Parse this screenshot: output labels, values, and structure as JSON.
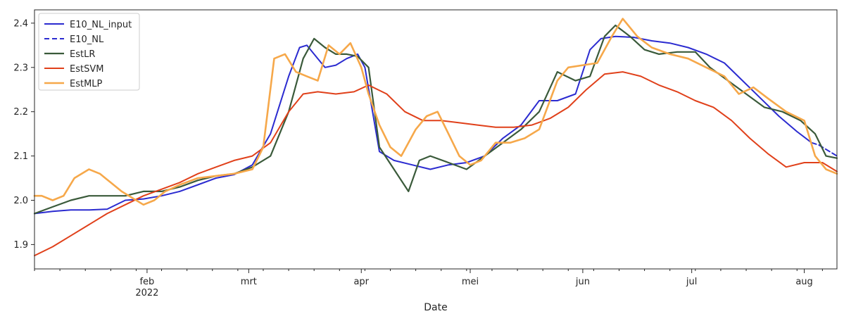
{
  "chart_data": {
    "type": "line",
    "title": "",
    "xlabel": "Date",
    "ylabel": "",
    "xlim": [
      "2022-01-01",
      "2022-08-10"
    ],
    "ylim": [
      1.845,
      2.43
    ],
    "grid": false,
    "legend_placement": "top-left",
    "y_ticks": [
      1.9,
      2.0,
      2.1,
      2.2,
      2.3,
      2.4
    ],
    "y_tick_labels": [
      "1.9",
      "2.0",
      "2.1",
      "2.2",
      "2.3",
      "2.4"
    ],
    "x_ticks": [
      {
        "date": "2022-02-01",
        "label": "feb",
        "sublabel": "2022"
      },
      {
        "date": "2022-03-01",
        "label": "mrt",
        "sublabel": ""
      },
      {
        "date": "2022-04-01",
        "label": "apr",
        "sublabel": ""
      },
      {
        "date": "2022-05-01",
        "label": "mei",
        "sublabel": ""
      },
      {
        "date": "2022-06-01",
        "label": "jun",
        "sublabel": ""
      },
      {
        "date": "2022-07-01",
        "label": "jul",
        "sublabel": ""
      },
      {
        "date": "2022-08-01",
        "label": "aug",
        "sublabel": ""
      }
    ],
    "series": [
      {
        "name": "E10_NL_input",
        "color": "#2b2bd0",
        "dash": "solid",
        "width": 2,
        "x": [
          "2022-01-01",
          "2022-01-06",
          "2022-01-11",
          "2022-01-16",
          "2022-01-21",
          "2022-01-26",
          "2022-01-31",
          "2022-02-05",
          "2022-02-10",
          "2022-02-15",
          "2022-02-20",
          "2022-02-25",
          "2022-03-02",
          "2022-03-07",
          "2022-03-12",
          "2022-03-15",
          "2022-03-17",
          "2022-03-20",
          "2022-03-22",
          "2022-03-25",
          "2022-03-28",
          "2022-03-31",
          "2022-04-02",
          "2022-04-06",
          "2022-04-10",
          "2022-04-15",
          "2022-04-20",
          "2022-04-25",
          "2022-04-30",
          "2022-05-05",
          "2022-05-10",
          "2022-05-15",
          "2022-05-20",
          "2022-05-25",
          "2022-05-30",
          "2022-06-03",
          "2022-06-06",
          "2022-06-10",
          "2022-06-15",
          "2022-06-20",
          "2022-06-25",
          "2022-06-30",
          "2022-07-05",
          "2022-07-10",
          "2022-07-15",
          "2022-07-20",
          "2022-07-25",
          "2022-07-30",
          "2022-08-03"
        ],
        "y": [
          1.97,
          1.975,
          1.978,
          1.978,
          1.98,
          2.0,
          2.003,
          2.01,
          2.02,
          2.035,
          2.05,
          2.058,
          2.08,
          2.15,
          2.28,
          2.345,
          2.35,
          2.32,
          2.3,
          2.305,
          2.32,
          2.33,
          2.3,
          2.11,
          2.09,
          2.08,
          2.07,
          2.08,
          2.085,
          2.1,
          2.14,
          2.17,
          2.225,
          2.225,
          2.24,
          2.34,
          2.365,
          2.37,
          2.368,
          2.36,
          2.355,
          2.345,
          2.33,
          2.31,
          2.27,
          2.23,
          2.19,
          2.155,
          2.13
        ]
      },
      {
        "name": "E10_NL",
        "color": "#2b2bd0",
        "dash": "dashed",
        "width": 2,
        "x": [
          "2022-08-03",
          "2022-08-05",
          "2022-08-07",
          "2022-08-09",
          "2022-08-10"
        ],
        "y": [
          2.13,
          2.125,
          2.115,
          2.105,
          2.1
        ]
      },
      {
        "name": "EstLR",
        "color": "#3a5a3a",
        "dash": "solid",
        "width": 2.2,
        "x": [
          "2022-01-01",
          "2022-01-06",
          "2022-01-11",
          "2022-01-16",
          "2022-01-21",
          "2022-01-26",
          "2022-01-31",
          "2022-02-05",
          "2022-02-10",
          "2022-02-15",
          "2022-02-20",
          "2022-02-25",
          "2022-03-02",
          "2022-03-07",
          "2022-03-12",
          "2022-03-16",
          "2022-03-19",
          "2022-03-22",
          "2022-03-25",
          "2022-03-28",
          "2022-03-31",
          "2022-04-03",
          "2022-04-06",
          "2022-04-10",
          "2022-04-14",
          "2022-04-17",
          "2022-04-20",
          "2022-04-25",
          "2022-04-30",
          "2022-05-05",
          "2022-05-10",
          "2022-05-15",
          "2022-05-20",
          "2022-05-25",
          "2022-05-30",
          "2022-06-03",
          "2022-06-07",
          "2022-06-10",
          "2022-06-14",
          "2022-06-18",
          "2022-06-22",
          "2022-06-27",
          "2022-07-02",
          "2022-07-06",
          "2022-07-11",
          "2022-07-16",
          "2022-07-21",
          "2022-07-26",
          "2022-07-31",
          "2022-08-04",
          "2022-08-07",
          "2022-08-10"
        ],
        "y": [
          1.97,
          1.985,
          2.0,
          2.01,
          2.01,
          2.01,
          2.02,
          2.02,
          2.03,
          2.045,
          2.055,
          2.06,
          2.075,
          2.1,
          2.2,
          2.32,
          2.365,
          2.345,
          2.33,
          2.33,
          2.325,
          2.3,
          2.12,
          2.07,
          2.02,
          2.09,
          2.1,
          2.085,
          2.07,
          2.1,
          2.13,
          2.16,
          2.2,
          2.29,
          2.27,
          2.28,
          2.37,
          2.395,
          2.37,
          2.34,
          2.33,
          2.335,
          2.335,
          2.3,
          2.27,
          2.24,
          2.21,
          2.2,
          2.18,
          2.15,
          2.1,
          2.095
        ]
      },
      {
        "name": "EstSVM",
        "color": "#e0401a",
        "dash": "solid",
        "width": 2,
        "x": [
          "2022-01-01",
          "2022-01-06",
          "2022-01-11",
          "2022-01-16",
          "2022-01-21",
          "2022-01-26",
          "2022-01-31",
          "2022-02-05",
          "2022-02-10",
          "2022-02-15",
          "2022-02-20",
          "2022-02-25",
          "2022-03-02",
          "2022-03-07",
          "2022-03-12",
          "2022-03-16",
          "2022-03-20",
          "2022-03-25",
          "2022-03-30",
          "2022-04-03",
          "2022-04-08",
          "2022-04-13",
          "2022-04-18",
          "2022-04-23",
          "2022-04-28",
          "2022-05-03",
          "2022-05-08",
          "2022-05-13",
          "2022-05-18",
          "2022-05-23",
          "2022-05-28",
          "2022-06-02",
          "2022-06-07",
          "2022-06-12",
          "2022-06-17",
          "2022-06-22",
          "2022-06-27",
          "2022-07-02",
          "2022-07-07",
          "2022-07-12",
          "2022-07-17",
          "2022-07-22",
          "2022-07-27",
          "2022-08-01",
          "2022-08-06",
          "2022-08-10"
        ],
        "y": [
          1.875,
          1.895,
          1.92,
          1.945,
          1.97,
          1.99,
          2.01,
          2.025,
          2.04,
          2.06,
          2.075,
          2.09,
          2.1,
          2.13,
          2.2,
          2.24,
          2.245,
          2.24,
          2.245,
          2.26,
          2.24,
          2.2,
          2.18,
          2.18,
          2.175,
          2.17,
          2.165,
          2.165,
          2.17,
          2.185,
          2.21,
          2.25,
          2.285,
          2.29,
          2.28,
          2.26,
          2.245,
          2.225,
          2.21,
          2.18,
          2.14,
          2.105,
          2.075,
          2.085,
          2.085,
          2.065
        ]
      },
      {
        "name": "EstMLP",
        "color": "#f6a84a",
        "dash": "solid",
        "width": 2.6,
        "x": [
          "2022-01-01",
          "2022-01-03",
          "2022-01-06",
          "2022-01-09",
          "2022-01-12",
          "2022-01-16",
          "2022-01-19",
          "2022-01-22",
          "2022-01-25",
          "2022-01-28",
          "2022-01-31",
          "2022-02-03",
          "2022-02-06",
          "2022-02-10",
          "2022-02-15",
          "2022-02-20",
          "2022-02-25",
          "2022-03-02",
          "2022-03-05",
          "2022-03-08",
          "2022-03-11",
          "2022-03-14",
          "2022-03-17",
          "2022-03-20",
          "2022-03-23",
          "2022-03-26",
          "2022-03-29",
          "2022-04-01",
          "2022-04-03",
          "2022-04-06",
          "2022-04-09",
          "2022-04-12",
          "2022-04-14",
          "2022-04-16",
          "2022-04-19",
          "2022-04-22",
          "2022-04-25",
          "2022-04-28",
          "2022-05-01",
          "2022-05-04",
          "2022-05-08",
          "2022-05-12",
          "2022-05-16",
          "2022-05-20",
          "2022-05-25",
          "2022-05-28",
          "2022-06-01",
          "2022-06-05",
          "2022-06-09",
          "2022-06-12",
          "2022-06-16",
          "2022-06-20",
          "2022-06-25",
          "2022-06-30",
          "2022-07-05",
          "2022-07-10",
          "2022-07-14",
          "2022-07-18",
          "2022-07-22",
          "2022-07-27",
          "2022-08-01",
          "2022-08-04",
          "2022-08-07",
          "2022-08-10"
        ],
        "y": [
          2.01,
          2.01,
          2.0,
          2.01,
          2.05,
          2.07,
          2.06,
          2.04,
          2.02,
          2.005,
          1.99,
          2.0,
          2.02,
          2.035,
          2.05,
          2.055,
          2.06,
          2.07,
          2.12,
          2.32,
          2.33,
          2.29,
          2.28,
          2.27,
          2.35,
          2.33,
          2.355,
          2.3,
          2.24,
          2.17,
          2.12,
          2.1,
          2.13,
          2.16,
          2.19,
          2.2,
          2.15,
          2.1,
          2.08,
          2.09,
          2.13,
          2.13,
          2.14,
          2.16,
          2.27,
          2.3,
          2.305,
          2.31,
          2.37,
          2.41,
          2.37,
          2.345,
          2.33,
          2.32,
          2.3,
          2.28,
          2.24,
          2.255,
          2.23,
          2.2,
          2.18,
          2.1,
          2.07,
          2.06
        ]
      }
    ]
  }
}
